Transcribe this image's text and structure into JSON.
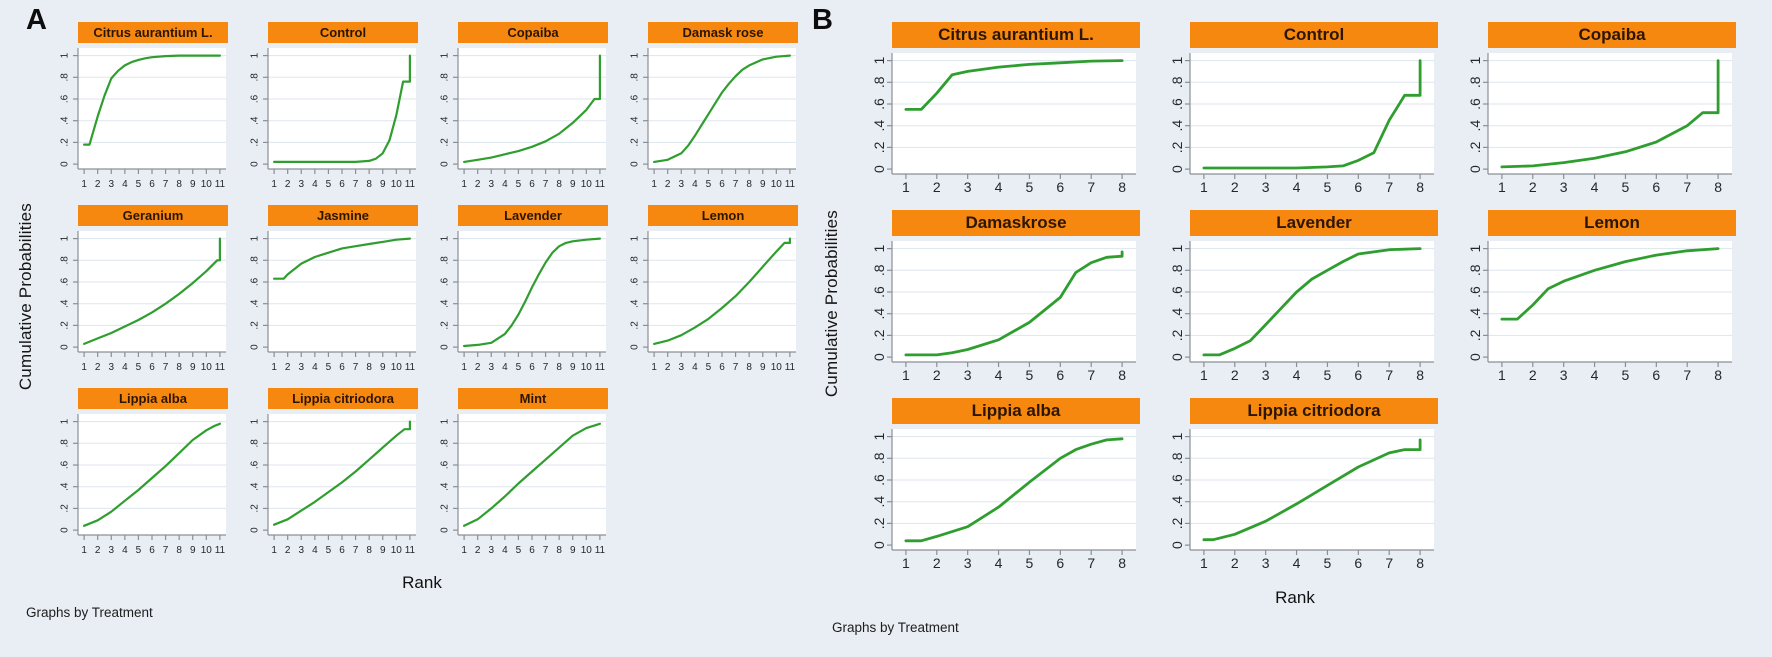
{
  "figure": {
    "background_color": "#e8eef3",
    "plot_background_color": "#ffffff",
    "gridline_color": "#dde6ee",
    "axis_color": "#8a8f96",
    "tick_label_color": "#23272e",
    "line_color": "#2f9e2f",
    "header_color": "#f6870f",
    "header_text_color": "#2d1600"
  },
  "chart_data": [
    {
      "panel_label": "A",
      "type": "line",
      "xlabel": "Rank",
      "ylabel": "Cumulative Probabilities",
      "note": "Graphs by Treatment",
      "layout": {
        "columns": 4,
        "rows": 3,
        "legend": "none",
        "grid": "horizontal"
      },
      "xlim": [
        1,
        11
      ],
      "ylim": [
        0,
        1
      ],
      "x_ticks": [
        1,
        2,
        3,
        4,
        5,
        6,
        7,
        8,
        9,
        10,
        11
      ],
      "y_tick_labels": [
        "0",
        ".2",
        ".4",
        ".6",
        ".8",
        "1"
      ],
      "series": [
        {
          "name": "Citrus aurantium L.",
          "points": [
            [
              1,
              0.18
            ],
            [
              1.4,
              0.18
            ],
            [
              2,
              0.44
            ],
            [
              2.5,
              0.63
            ],
            [
              3,
              0.79
            ],
            [
              3.5,
              0.86
            ],
            [
              4,
              0.91
            ],
            [
              4.5,
              0.94
            ],
            [
              5,
              0.96
            ],
            [
              5.5,
              0.975
            ],
            [
              6,
              0.985
            ],
            [
              7,
              0.995
            ],
            [
              8,
              1
            ],
            [
              9,
              1
            ],
            [
              10,
              1
            ],
            [
              11,
              1
            ]
          ]
        },
        {
          "name": "Control",
          "points": [
            [
              1,
              0.02
            ],
            [
              2,
              0.02
            ],
            [
              3,
              0.02
            ],
            [
              4,
              0.02
            ],
            [
              5,
              0.02
            ],
            [
              6,
              0.02
            ],
            [
              7,
              0.02
            ],
            [
              8,
              0.03
            ],
            [
              8.5,
              0.05
            ],
            [
              9,
              0.1
            ],
            [
              9.5,
              0.22
            ],
            [
              10,
              0.45
            ],
            [
              10.5,
              0.76
            ],
            [
              11,
              0.76
            ],
            [
              11,
              1
            ]
          ]
        },
        {
          "name": "Copaiba",
          "points": [
            [
              1,
              0.02
            ],
            [
              2,
              0.04
            ],
            [
              3,
              0.06
            ],
            [
              4,
              0.09
            ],
            [
              5,
              0.12
            ],
            [
              6,
              0.16
            ],
            [
              7,
              0.21
            ],
            [
              8,
              0.28
            ],
            [
              9,
              0.38
            ],
            [
              10,
              0.5
            ],
            [
              10.6,
              0.6
            ],
            [
              11,
              0.6
            ],
            [
              11,
              1
            ]
          ]
        },
        {
          "name": "Damask rose",
          "points": [
            [
              1,
              0.02
            ],
            [
              2,
              0.04
            ],
            [
              3,
              0.1
            ],
            [
              3.5,
              0.17
            ],
            [
              4,
              0.26
            ],
            [
              4.5,
              0.36
            ],
            [
              5,
              0.46
            ],
            [
              5.5,
              0.56
            ],
            [
              6,
              0.66
            ],
            [
              6.5,
              0.74
            ],
            [
              7,
              0.81
            ],
            [
              7.5,
              0.87
            ],
            [
              8,
              0.91
            ],
            [
              9,
              0.965
            ],
            [
              10,
              0.99
            ],
            [
              11,
              1
            ]
          ]
        },
        {
          "name": "Geranium",
          "points": [
            [
              1,
              0.03
            ],
            [
              2,
              0.08
            ],
            [
              3,
              0.13
            ],
            [
              4,
              0.19
            ],
            [
              5,
              0.25
            ],
            [
              6,
              0.32
            ],
            [
              7,
              0.4
            ],
            [
              8,
              0.49
            ],
            [
              9,
              0.59
            ],
            [
              10,
              0.7
            ],
            [
              10.8,
              0.8
            ],
            [
              11,
              0.8
            ],
            [
              11,
              1
            ]
          ]
        },
        {
          "name": "Jasmine",
          "points": [
            [
              1,
              0.63
            ],
            [
              1.7,
              0.63
            ],
            [
              2,
              0.67
            ],
            [
              2.5,
              0.72
            ],
            [
              3,
              0.77
            ],
            [
              4,
              0.83
            ],
            [
              5,
              0.87
            ],
            [
              6,
              0.91
            ],
            [
              7,
              0.93
            ],
            [
              8,
              0.95
            ],
            [
              9,
              0.97
            ],
            [
              10,
              0.99
            ],
            [
              11,
              1
            ]
          ]
        },
        {
          "name": "Lavender",
          "points": [
            [
              1,
              0.01
            ],
            [
              2,
              0.02
            ],
            [
              3,
              0.04
            ],
            [
              4,
              0.12
            ],
            [
              4.5,
              0.2
            ],
            [
              5,
              0.3
            ],
            [
              5.5,
              0.42
            ],
            [
              6,
              0.55
            ],
            [
              6.5,
              0.67
            ],
            [
              7,
              0.78
            ],
            [
              7.5,
              0.87
            ],
            [
              8,
              0.93
            ],
            [
              8.5,
              0.96
            ],
            [
              9,
              0.975
            ],
            [
              10,
              0.99
            ],
            [
              11,
              1
            ]
          ]
        },
        {
          "name": "Lemon",
          "points": [
            [
              1,
              0.03
            ],
            [
              2,
              0.06
            ],
            [
              3,
              0.11
            ],
            [
              4,
              0.18
            ],
            [
              5,
              0.26
            ],
            [
              6,
              0.36
            ],
            [
              7,
              0.47
            ],
            [
              8,
              0.6
            ],
            [
              9,
              0.74
            ],
            [
              10,
              0.88
            ],
            [
              10.6,
              0.96
            ],
            [
              11,
              0.96
            ],
            [
              11,
              1
            ]
          ]
        },
        {
          "name": "Lippia alba",
          "points": [
            [
              1,
              0.04
            ],
            [
              2,
              0.09
            ],
            [
              3,
              0.17
            ],
            [
              4,
              0.27
            ],
            [
              5,
              0.37
            ],
            [
              6,
              0.48
            ],
            [
              7,
              0.59
            ],
            [
              8,
              0.71
            ],
            [
              9,
              0.83
            ],
            [
              10,
              0.92
            ],
            [
              10.6,
              0.96
            ],
            [
              11,
              0.98
            ]
          ]
        },
        {
          "name": "Lippia citriodora",
          "points": [
            [
              1,
              0.05
            ],
            [
              2,
              0.1
            ],
            [
              3,
              0.18
            ],
            [
              4,
              0.26
            ],
            [
              5,
              0.35
            ],
            [
              6,
              0.44
            ],
            [
              7,
              0.54
            ],
            [
              8,
              0.65
            ],
            [
              9,
              0.76
            ],
            [
              10,
              0.87
            ],
            [
              10.6,
              0.93
            ],
            [
              11,
              0.93
            ],
            [
              11,
              1
            ]
          ]
        },
        {
          "name": "Mint",
          "points": [
            [
              1,
              0.04
            ],
            [
              2,
              0.1
            ],
            [
              3,
              0.2
            ],
            [
              4,
              0.31
            ],
            [
              5,
              0.43
            ],
            [
              6,
              0.54
            ],
            [
              7,
              0.65
            ],
            [
              8,
              0.76
            ],
            [
              9,
              0.87
            ],
            [
              10,
              0.94
            ],
            [
              11,
              0.98
            ]
          ]
        }
      ]
    },
    {
      "panel_label": "B",
      "type": "line",
      "xlabel": "Rank",
      "ylabel": "Cumulative Probabilities",
      "note": "Graphs by Treatment",
      "layout": {
        "columns": 3,
        "rows": 3,
        "legend": "none",
        "grid": "horizontal"
      },
      "xlim": [
        1,
        8
      ],
      "ylim": [
        0,
        1
      ],
      "x_ticks": [
        1,
        2,
        3,
        4,
        5,
        6,
        7,
        8
      ],
      "y_tick_labels": [
        "0",
        ".2",
        ".4",
        ".6",
        ".8",
        "1"
      ],
      "series": [
        {
          "name": "Citrus aurantium L.",
          "points": [
            [
              1,
              0.55
            ],
            [
              1.5,
              0.55
            ],
            [
              2,
              0.7
            ],
            [
              2.5,
              0.87
            ],
            [
              3,
              0.9
            ],
            [
              4,
              0.94
            ],
            [
              5,
              0.965
            ],
            [
              6,
              0.98
            ],
            [
              7,
              0.995
            ],
            [
              8,
              1
            ]
          ]
        },
        {
          "name": "Control",
          "points": [
            [
              1,
              0.01
            ],
            [
              2,
              0.01
            ],
            [
              3,
              0.01
            ],
            [
              4,
              0.01
            ],
            [
              5,
              0.02
            ],
            [
              5.5,
              0.03
            ],
            [
              6,
              0.08
            ],
            [
              6.5,
              0.15
            ],
            [
              7,
              0.45
            ],
            [
              7.5,
              0.68
            ],
            [
              8,
              0.68
            ],
            [
              8,
              1
            ]
          ]
        },
        {
          "name": "Copaiba",
          "points": [
            [
              1,
              0.02
            ],
            [
              2,
              0.03
            ],
            [
              3,
              0.06
            ],
            [
              4,
              0.1
            ],
            [
              5,
              0.16
            ],
            [
              6,
              0.25
            ],
            [
              7,
              0.4
            ],
            [
              7.5,
              0.52
            ],
            [
              8,
              0.52
            ],
            [
              8,
              1
            ]
          ]
        },
        {
          "name": "Damaskrose",
          "points": [
            [
              1,
              0.02
            ],
            [
              2,
              0.02
            ],
            [
              2.5,
              0.04
            ],
            [
              3,
              0.07
            ],
            [
              4,
              0.16
            ],
            [
              5,
              0.32
            ],
            [
              6,
              0.55
            ],
            [
              6.5,
              0.78
            ],
            [
              7,
              0.87
            ],
            [
              7.5,
              0.92
            ],
            [
              8,
              0.93
            ],
            [
              8,
              0.97
            ]
          ]
        },
        {
          "name": "Lavender",
          "points": [
            [
              1,
              0.02
            ],
            [
              1.5,
              0.02
            ],
            [
              2,
              0.08
            ],
            [
              2.5,
              0.15
            ],
            [
              3,
              0.3
            ],
            [
              3.5,
              0.45
            ],
            [
              4,
              0.6
            ],
            [
              4.5,
              0.72
            ],
            [
              5,
              0.8
            ],
            [
              5.5,
              0.88
            ],
            [
              6,
              0.95
            ],
            [
              6.5,
              0.97
            ],
            [
              7,
              0.99
            ],
            [
              8,
              1
            ]
          ]
        },
        {
          "name": "Lemon",
          "points": [
            [
              1,
              0.35
            ],
            [
              1.5,
              0.35
            ],
            [
              2,
              0.48
            ],
            [
              2.5,
              0.63
            ],
            [
              3,
              0.7
            ],
            [
              4,
              0.8
            ],
            [
              5,
              0.88
            ],
            [
              6,
              0.94
            ],
            [
              7,
              0.98
            ],
            [
              8,
              1
            ]
          ]
        },
        {
          "name": "Lippia alba",
          "points": [
            [
              1,
              0.04
            ],
            [
              1.5,
              0.04
            ],
            [
              2,
              0.08
            ],
            [
              3,
              0.17
            ],
            [
              4,
              0.35
            ],
            [
              5,
              0.58
            ],
            [
              6,
              0.8
            ],
            [
              6.5,
              0.88
            ],
            [
              7,
              0.93
            ],
            [
              7.5,
              0.97
            ],
            [
              8,
              0.98
            ]
          ]
        },
        {
          "name": "Lippia citriodora",
          "points": [
            [
              1,
              0.05
            ],
            [
              1.3,
              0.05
            ],
            [
              2,
              0.1
            ],
            [
              3,
              0.22
            ],
            [
              4,
              0.38
            ],
            [
              5,
              0.55
            ],
            [
              6,
              0.72
            ],
            [
              7,
              0.85
            ],
            [
              7.5,
              0.88
            ],
            [
              8,
              0.88
            ],
            [
              8,
              0.97
            ]
          ]
        }
      ]
    }
  ]
}
